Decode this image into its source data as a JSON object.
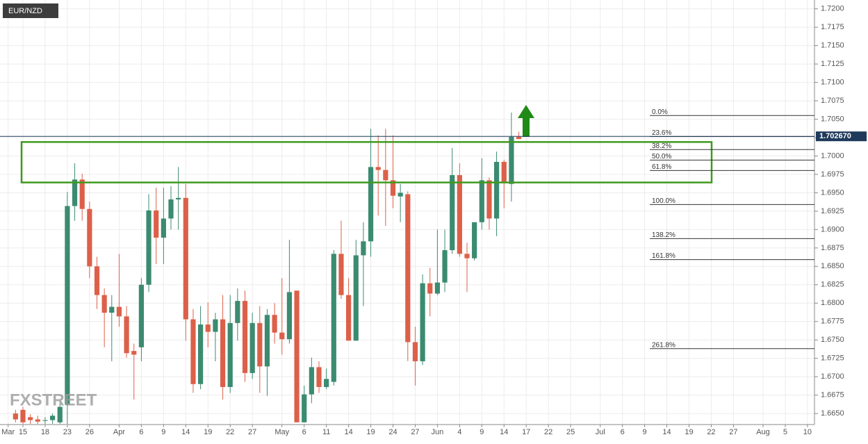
{
  "chart_data": {
    "type": "candlestick",
    "title": "EUR/NZD",
    "logo": "FXSTREET",
    "categories": [
      "Mar",
      null,
      "15",
      null,
      null,
      "18",
      null,
      null,
      "23",
      null,
      null,
      "26",
      null,
      null,
      null,
      "Apr",
      null,
      null,
      "6",
      null,
      null,
      "9",
      null,
      null,
      "14",
      null,
      null,
      "19",
      null,
      null,
      "22",
      null,
      null,
      "27",
      null,
      null,
      null,
      "May",
      null,
      null,
      "6",
      null,
      null,
      "11",
      null,
      null,
      "14",
      null,
      null,
      "19",
      null,
      null,
      "24",
      null,
      null,
      "27",
      null,
      null,
      "Jun",
      null,
      null,
      "4",
      null,
      null,
      "9",
      null,
      null,
      "14",
      null,
      null,
      "17",
      null,
      null,
      "22",
      null,
      null,
      "25",
      null,
      null,
      null,
      "Jul",
      null,
      null,
      "6",
      null,
      null,
      "9",
      null,
      null,
      "14",
      null,
      null,
      "19",
      null,
      null,
      "22",
      null,
      null,
      "27",
      null,
      null,
      null,
      "Aug",
      null,
      null,
      "5",
      null,
      null,
      "10"
    ],
    "open": [
      null,
      1.665,
      1.6655,
      1.6645,
      1.6642,
      1.664,
      1.6641,
      1.6638,
      1.6662,
      1.6932,
      1.6968,
      1.6928,
      1.685,
      1.6811,
      1.6787,
      1.6795,
      1.6782,
      1.6735,
      1.674,
      1.6825,
      1.6926,
      1.6889,
      1.6915,
      1.6941,
      1.6943,
      1.6778,
      1.669,
      1.6771,
      1.6761,
      1.6778,
      1.6686,
      1.6773,
      1.6803,
      1.6705,
      1.6773,
      1.6714,
      1.6784,
      1.676,
      1.6751,
      1.6817,
      1.6638,
      1.6676,
      1.6713,
      1.6686,
      1.6693,
      1.6867,
      1.6811,
      1.6749,
      1.6865,
      1.6884,
      1.6985,
      1.6981,
      1.6967,
      1.6945,
      1.6948,
      1.6747,
      1.6721,
      1.6827,
      1.6813,
      1.6828,
      1.6872,
      1.6974,
      1.6867,
      1.6861,
      1.691,
      1.6967,
      1.6915,
      1.6992,
      1.6962,
      1.7026,
      null,
      null,
      null,
      null,
      null,
      null,
      null,
      null,
      null,
      null,
      null,
      null,
      null,
      null,
      null,
      null,
      null,
      null,
      null,
      null,
      null,
      null,
      null,
      null,
      null,
      null,
      null,
      null,
      null,
      null,
      null,
      null,
      null,
      null,
      null,
      null,
      null,
      null,
      null
    ],
    "high": [
      null,
      1.6655,
      1.6659,
      1.6649,
      1.6647,
      1.6645,
      1.665,
      1.6664,
      1.6951,
      1.699,
      1.6976,
      1.6938,
      1.6863,
      1.682,
      1.6811,
      1.6867,
      1.6796,
      1.6745,
      1.6834,
      1.6948,
      1.6957,
      1.6957,
      1.6959,
      1.6985,
      1.6962,
      1.6792,
      1.6796,
      1.6801,
      1.6787,
      1.6811,
      1.6811,
      1.682,
      1.6817,
      1.6787,
      1.6796,
      1.6792,
      1.68,
      1.6834,
      1.6886,
      1.6817,
      1.6688,
      1.6726,
      1.6721,
      1.6711,
      1.6872,
      1.6912,
      1.6834,
      1.6886,
      1.691,
      1.7037,
      1.7028,
      1.7037,
      1.7028,
      1.6962,
      1.6952,
      1.6768,
      1.6839,
      1.6848,
      1.69,
      1.69,
      1.7011,
      1.699,
      1.6882,
      1.691,
      1.6997,
      1.6971,
      1.7006,
      1.6995,
      1.7059,
      1.7033,
      null,
      null,
      null,
      null,
      null,
      null,
      null,
      null,
      null,
      null,
      null,
      null,
      null,
      null,
      null,
      null,
      null,
      null,
      null,
      null,
      null,
      null,
      null,
      null,
      null,
      null,
      null,
      null,
      null,
      null,
      null,
      null,
      null,
      null,
      null,
      null,
      null,
      null,
      null
    ],
    "low": [
      null,
      1.6638,
      1.6636,
      1.6636,
      1.6636,
      1.6636,
      1.6636,
      1.6636,
      1.6636,
      1.6912,
      1.6912,
      1.6834,
      1.6792,
      1.674,
      1.6721,
      1.6768,
      1.6726,
      1.6669,
      1.6721,
      1.6815,
      1.6853,
      1.6853,
      1.69,
      1.69,
      1.6749,
      1.6678,
      1.6683,
      1.674,
      1.6721,
      1.6669,
      1.6678,
      1.6749,
      1.6693,
      1.6697,
      1.6678,
      1.6674,
      1.6745,
      1.673,
      1.6745,
      1.6638,
      1.6638,
      1.6664,
      1.6678,
      1.6683,
      1.6688,
      1.6806,
      1.6749,
      1.6749,
      1.6796,
      1.6863,
      1.6919,
      1.6905,
      1.6929,
      1.691,
      1.6721,
      1.6688,
      1.6716,
      1.6782,
      1.6811,
      1.6815,
      1.6867,
      1.6863,
      1.6815,
      1.6858,
      1.69,
      1.69,
      1.6891,
      1.6929,
      1.6938,
      1.7023,
      null,
      null,
      null,
      null,
      null,
      null,
      null,
      null,
      null,
      null,
      null,
      null,
      null,
      null,
      null,
      null,
      null,
      null,
      null,
      null,
      null,
      null,
      null,
      null,
      null,
      null,
      null,
      null,
      null,
      null,
      null,
      null,
      null,
      null,
      null,
      null,
      null,
      null,
      null
    ],
    "close": [
      null,
      1.6642,
      1.6638,
      1.6641,
      1.6639,
      1.6641,
      1.6647,
      1.6659,
      1.6932,
      1.6968,
      1.6928,
      1.685,
      1.6811,
      1.6787,
      1.6795,
      1.6782,
      1.6732,
      1.673,
      1.6825,
      1.6926,
      1.6889,
      1.6915,
      1.6941,
      1.6943,
      1.6778,
      1.669,
      1.6771,
      1.6761,
      1.6778,
      1.6686,
      1.6773,
      1.6803,
      1.6705,
      1.6773,
      1.6714,
      1.6784,
      1.676,
      1.6751,
      1.6815,
      1.6638,
      1.6676,
      1.6713,
      1.6686,
      1.6697,
      1.6867,
      1.6811,
      1.6749,
      1.6865,
      1.6884,
      1.6985,
      1.6981,
      1.6967,
      1.6946,
      1.695,
      1.6747,
      1.6721,
      1.6827,
      1.6813,
      1.6828,
      1.6872,
      1.6974,
      1.6867,
      1.6861,
      1.691,
      1.6967,
      1.6915,
      1.6992,
      1.6964,
      1.7026,
      1.7023,
      null,
      null,
      null,
      null,
      null,
      null,
      null,
      null,
      null,
      null,
      null,
      null,
      null,
      null,
      null,
      null,
      null,
      null,
      null,
      null,
      null,
      null,
      null,
      null,
      null,
      null,
      null,
      null,
      null,
      null,
      null,
      null,
      null,
      null,
      null,
      null,
      null,
      null,
      null
    ],
    "up_color": "#3b8b70",
    "down_color": "#dc6049",
    "ylim": [
      1.6635,
      1.7212
    ],
    "yticks": [
      {
        "value": 1.665,
        "label": "1.6650"
      },
      {
        "value": 1.6675,
        "label": "1.6675"
      },
      {
        "value": 1.67,
        "label": "1.6700"
      },
      {
        "value": 1.6725,
        "label": "1.6725"
      },
      {
        "value": 1.675,
        "label": "1.6750"
      },
      {
        "value": 1.6775,
        "label": "1.6775"
      },
      {
        "value": 1.68,
        "label": "1.6800"
      },
      {
        "value": 1.6825,
        "label": "1.6825"
      },
      {
        "value": 1.685,
        "label": "1.6850"
      },
      {
        "value": 1.6875,
        "label": "1.6875"
      },
      {
        "value": 1.69,
        "label": "1.6900"
      },
      {
        "value": 1.6925,
        "label": "1.6925"
      },
      {
        "value": 1.695,
        "label": "1.6950"
      },
      {
        "value": 1.6975,
        "label": "1.6975"
      },
      {
        "value": 1.7,
        "label": "1.7000"
      },
      {
        "value": 1.7025,
        "label": "1.7025"
      },
      {
        "value": 1.705,
        "label": "1.7050"
      },
      {
        "value": 1.7075,
        "label": "1.7075"
      },
      {
        "value": 1.71,
        "label": "1.7100"
      },
      {
        "value": 1.7125,
        "label": "1.7125"
      },
      {
        "value": 1.715,
        "label": "1.7150"
      },
      {
        "value": 1.7175,
        "label": "1.7175"
      },
      {
        "value": 1.72,
        "label": "1.7200"
      }
    ],
    "grid": true,
    "current_price": {
      "value": 1.70267,
      "label": "1.702670"
    },
    "fibonacci": {
      "high": 1.7055,
      "low": 1.6934,
      "levels": [
        0,
        23.6,
        38.2,
        50,
        61.8,
        100,
        138.2,
        161.8,
        261.8
      ],
      "level_labels": [
        "0.0%",
        "23.6%",
        "38.2%",
        "50.0%",
        "61.8%",
        "100.0%",
        "138.2%",
        "161.8%",
        "261.8%"
      ]
    },
    "zone": [
      1.6964,
      1.7019
    ],
    "zone_color": "#3f9a1e"
  }
}
